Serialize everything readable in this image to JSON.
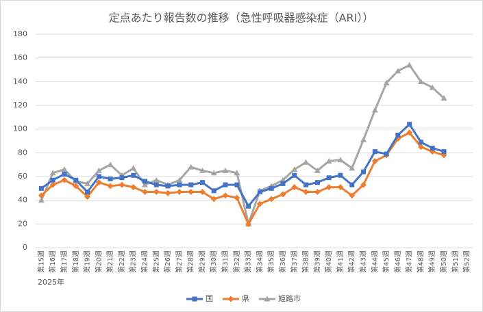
{
  "chart_data": {
    "type": "line",
    "title": "定点あたり報告数の推移（急性呼吸器感染症（ARI））",
    "x_label": "2025年",
    "categories": [
      "第15週",
      "第16週",
      "第17週",
      "第18週",
      "第19週",
      "第20週",
      "第21週",
      "第22週",
      "第23週",
      "第24週",
      "第25週",
      "第26週",
      "第27週",
      "第28週",
      "第29週",
      "第30週",
      "第31週",
      "第32週",
      "第33週",
      "第34週",
      "第35週",
      "第36週",
      "第37週",
      "第38週",
      "第39週",
      "第40週",
      "第41週",
      "第42週",
      "第43週",
      "第44週",
      "第45週",
      "第46週",
      "第47週",
      "第48週",
      "第49週",
      "第50週",
      "第51週",
      "第52週"
    ],
    "series": [
      {
        "name": "国",
        "color": "#4472c4",
        "marker": "square",
        "values": [
          50,
          57,
          62,
          57,
          47,
          60,
          58,
          59,
          61,
          56,
          53,
          52,
          53,
          53,
          55,
          48,
          53,
          53,
          35,
          47,
          50,
          54,
          61,
          53,
          55,
          59,
          61,
          53,
          64,
          81,
          79,
          95,
          104,
          89,
          84,
          81,
          null,
          null
        ]
      },
      {
        "name": "県",
        "color": "#ed7d31",
        "marker": "diamond",
        "values": [
          44,
          53,
          57,
          52,
          43,
          55,
          52,
          53,
          51,
          47,
          47,
          46,
          47,
          47,
          47,
          41,
          44,
          42,
          20,
          37,
          41,
          45,
          51,
          47,
          47,
          51,
          51,
          44,
          53,
          73,
          78,
          92,
          97,
          85,
          81,
          78,
          null,
          null
        ]
      },
      {
        "name": "姫路市",
        "color": "#a5a5a5",
        "marker": "triangle",
        "values": [
          40,
          63,
          66,
          56,
          54,
          65,
          70,
          61,
          67,
          53,
          57,
          53,
          57,
          68,
          65,
          63,
          65,
          63,
          20,
          48,
          52,
          57,
          66,
          72,
          65,
          73,
          74,
          67,
          91,
          116,
          139,
          149,
          154,
          140,
          135,
          126,
          null,
          null
        ]
      }
    ],
    "ylim": [
      0,
      180
    ],
    "yticks": [
      0,
      20,
      40,
      60,
      80,
      100,
      120,
      140,
      160,
      180
    ],
    "grid": true,
    "legend": "bottom"
  }
}
